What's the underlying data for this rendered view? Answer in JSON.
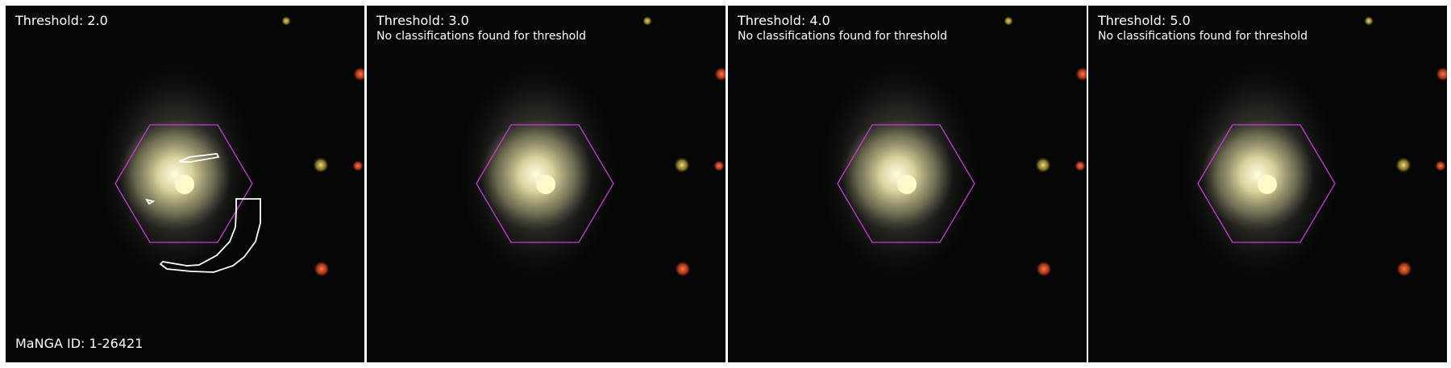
{
  "galaxy": {
    "manga_id_text": "MaNGA ID: 1-26421"
  },
  "panels": [
    {
      "threshold_text": "Threshold: 2.0",
      "note_text": "",
      "has_contours": true
    },
    {
      "threshold_text": "Threshold: 3.0",
      "note_text": "No classifications found for threshold",
      "has_contours": false
    },
    {
      "threshold_text": "Threshold: 4.0",
      "note_text": "No classifications found for threshold",
      "has_contours": false
    },
    {
      "threshold_text": "Threshold: 5.0",
      "note_text": "No classifications found for threshold",
      "has_contours": false
    }
  ],
  "colors": {
    "hexagon_outline": "#c43cd6",
    "contour_outline": "#ffffff",
    "sky_background": "#050505",
    "label_text": "#ffffff"
  }
}
